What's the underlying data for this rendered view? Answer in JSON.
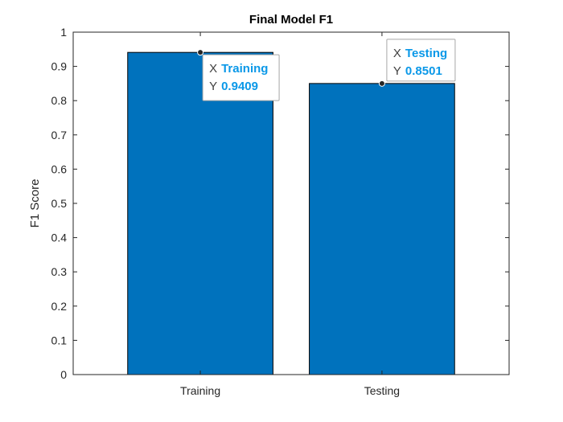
{
  "chart_data": {
    "type": "bar",
    "title": "Final Model F1",
    "xlabel": "",
    "ylabel": "F1 Score",
    "categories": [
      "Training",
      "Testing"
    ],
    "values": [
      0.9409,
      0.8501
    ],
    "ylim": [
      0,
      1
    ],
    "yticks": [
      0,
      0.1,
      0.2,
      0.3,
      0.4,
      0.5,
      0.6,
      0.7,
      0.8,
      0.9,
      1
    ],
    "ytick_labels": [
      "0",
      "0.1",
      "0.2",
      "0.3",
      "0.4",
      "0.5",
      "0.6",
      "0.7",
      "0.8",
      "0.9",
      "1"
    ],
    "grid": false,
    "bar_color": "#0072BD",
    "datatips": [
      {
        "x_key": "X",
        "x_value": "Training",
        "y_key": "Y",
        "y_value": "0.9409"
      },
      {
        "x_key": "X",
        "x_value": "Testing",
        "y_key": "Y",
        "y_value": "0.8501"
      }
    ],
    "datatip_value_color": "#0A98E8"
  }
}
